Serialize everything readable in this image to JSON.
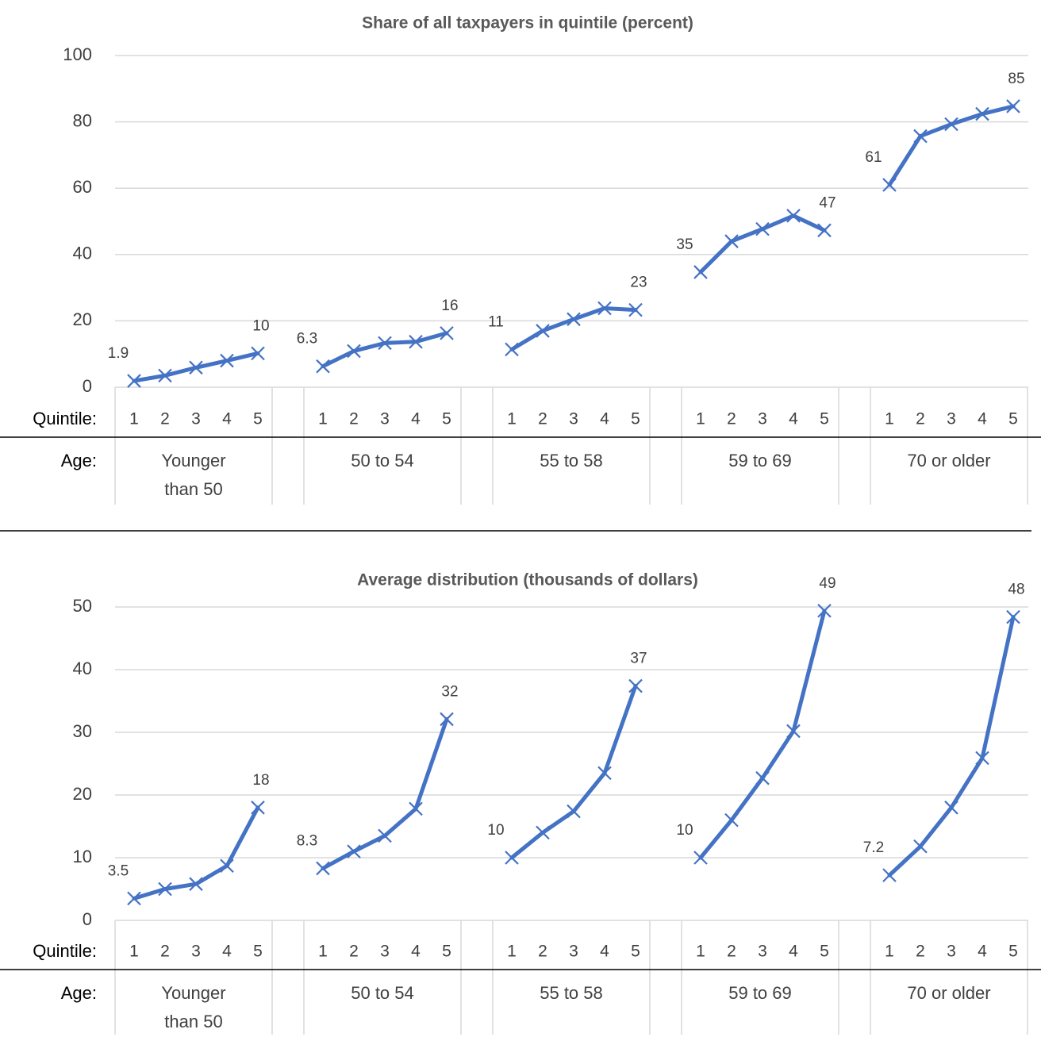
{
  "labels": {
    "quintile_row": "Quintile:",
    "age_row": "Age:"
  },
  "colors": {
    "series": "#4472c4",
    "grid": "#d9d9d9",
    "rule": "#000000"
  },
  "chart_data": [
    {
      "type": "line",
      "title": "Share of all taxpayers in quintile (percent)",
      "ylim": [
        0,
        100
      ],
      "yticks": [
        0,
        20,
        40,
        60,
        80,
        100
      ],
      "grid": true,
      "marker": "x",
      "quintiles": [
        "1",
        "2",
        "3",
        "4",
        "5"
      ],
      "groups": [
        {
          "age": [
            "Younger",
            "than 50"
          ],
          "values": [
            1.9,
            3.5,
            5.9,
            8.0,
            10.2
          ],
          "labels": [
            "1.9",
            "",
            "",
            "",
            "10"
          ]
        },
        {
          "age": [
            "50 to 54"
          ],
          "values": [
            6.3,
            10.9,
            13.3,
            13.7,
            16.3
          ],
          "labels": [
            "6.3",
            "",
            "",
            "",
            "16"
          ]
        },
        {
          "age": [
            "55 to 58"
          ],
          "values": [
            11.4,
            17.0,
            20.5,
            23.8,
            23.3
          ],
          "labels": [
            "11",
            "",
            "",
            "",
            "23"
          ]
        },
        {
          "age": [
            "59 to 69"
          ],
          "values": [
            34.7,
            44.0,
            47.7,
            51.7,
            47.3
          ],
          "labels": [
            "35",
            "",
            "",
            "",
            "47"
          ]
        },
        {
          "age": [
            "70 or older"
          ],
          "values": [
            61.0,
            75.7,
            79.3,
            82.4,
            84.7
          ],
          "labels": [
            "61",
            "",
            "",
            "",
            "85"
          ]
        }
      ]
    },
    {
      "type": "line",
      "title": "Average distribution (thousands of dollars)",
      "ylim": [
        0,
        50
      ],
      "yticks": [
        0,
        10,
        20,
        30,
        40,
        50
      ],
      "grid": true,
      "marker": "x",
      "quintiles": [
        "1",
        "2",
        "3",
        "4",
        "5"
      ],
      "groups": [
        {
          "age": [
            "Younger",
            "than 50"
          ],
          "values": [
            3.5,
            5.0,
            5.8,
            8.7,
            18.0
          ],
          "labels": [
            "3.5",
            "",
            "",
            "",
            "18"
          ]
        },
        {
          "age": [
            "50 to 54"
          ],
          "values": [
            8.3,
            11.0,
            13.5,
            17.8,
            32.1
          ],
          "labels": [
            "8.3",
            "",
            "",
            "",
            "32"
          ]
        },
        {
          "age": [
            "55 to 58"
          ],
          "values": [
            10.0,
            14.0,
            17.4,
            23.5,
            37.4
          ],
          "labels": [
            "10",
            "",
            "",
            "",
            "37"
          ]
        },
        {
          "age": [
            "59 to 69"
          ],
          "values": [
            10.0,
            16.0,
            22.7,
            30.2,
            49.4
          ],
          "labels": [
            "10",
            "",
            "",
            "",
            "49"
          ]
        },
        {
          "age": [
            "70 or older"
          ],
          "values": [
            7.2,
            11.8,
            18.0,
            25.9,
            48.4
          ],
          "labels": [
            "7.2",
            "",
            "",
            "",
            "48"
          ]
        }
      ]
    }
  ]
}
